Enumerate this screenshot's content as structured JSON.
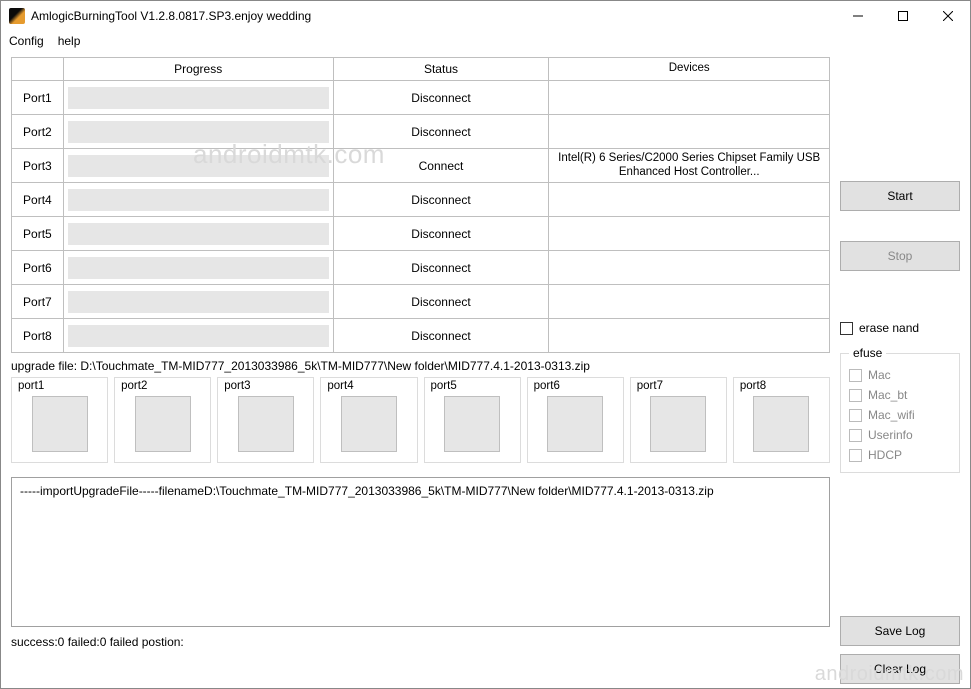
{
  "window": {
    "title": "AmlogicBurningTool  V1.2.8.0817.SP3.enjoy wedding"
  },
  "menu": {
    "config": "Config",
    "help": "help"
  },
  "table": {
    "headers": {
      "progress": "Progress",
      "status": "Status",
      "devices": "Devices"
    },
    "rows": [
      {
        "port": "Port1",
        "status": "Disconnect",
        "device": ""
      },
      {
        "port": "Port2",
        "status": "Disconnect",
        "device": ""
      },
      {
        "port": "Port3",
        "status": "Connect",
        "device": "Intel(R) 6 Series/C2000 Series Chipset Family USB Enhanced Host Controller..."
      },
      {
        "port": "Port4",
        "status": "Disconnect",
        "device": ""
      },
      {
        "port": "Port5",
        "status": "Disconnect",
        "device": ""
      },
      {
        "port": "Port6",
        "status": "Disconnect",
        "device": ""
      },
      {
        "port": "Port7",
        "status": "Disconnect",
        "device": ""
      },
      {
        "port": "Port8",
        "status": "Disconnect",
        "device": ""
      }
    ]
  },
  "upgrade_file_label": "upgrade file: D:\\Touchmate_TM-MID777_2013033986_5k\\TM-MID777\\New folder\\MID777.4.1-2013-0313.zip",
  "thumbs": [
    "port1",
    "port2",
    "port3",
    "port4",
    "port5",
    "port6",
    "port7",
    "port8"
  ],
  "log_text": "-----importUpgradeFile-----filenameD:\\Touchmate_TM-MID777_2013033986_5k\\TM-MID777\\New folder\\MID777.4.1-2013-0313.zip",
  "status_line": "success:0 failed:0 failed postion:",
  "buttons": {
    "start": "Start",
    "stop": "Stop",
    "save_log": "Save Log",
    "clear_log": "Clear Log"
  },
  "erase_nand_label": "erase nand",
  "efuse": {
    "group_label": "efuse",
    "mac": "Mac",
    "mac_bt": "Mac_bt",
    "mac_wifi": "Mac_wifi",
    "userinfo": "Userinfo",
    "hdcp": "HDCP"
  },
  "watermark": "androidmtk.com"
}
